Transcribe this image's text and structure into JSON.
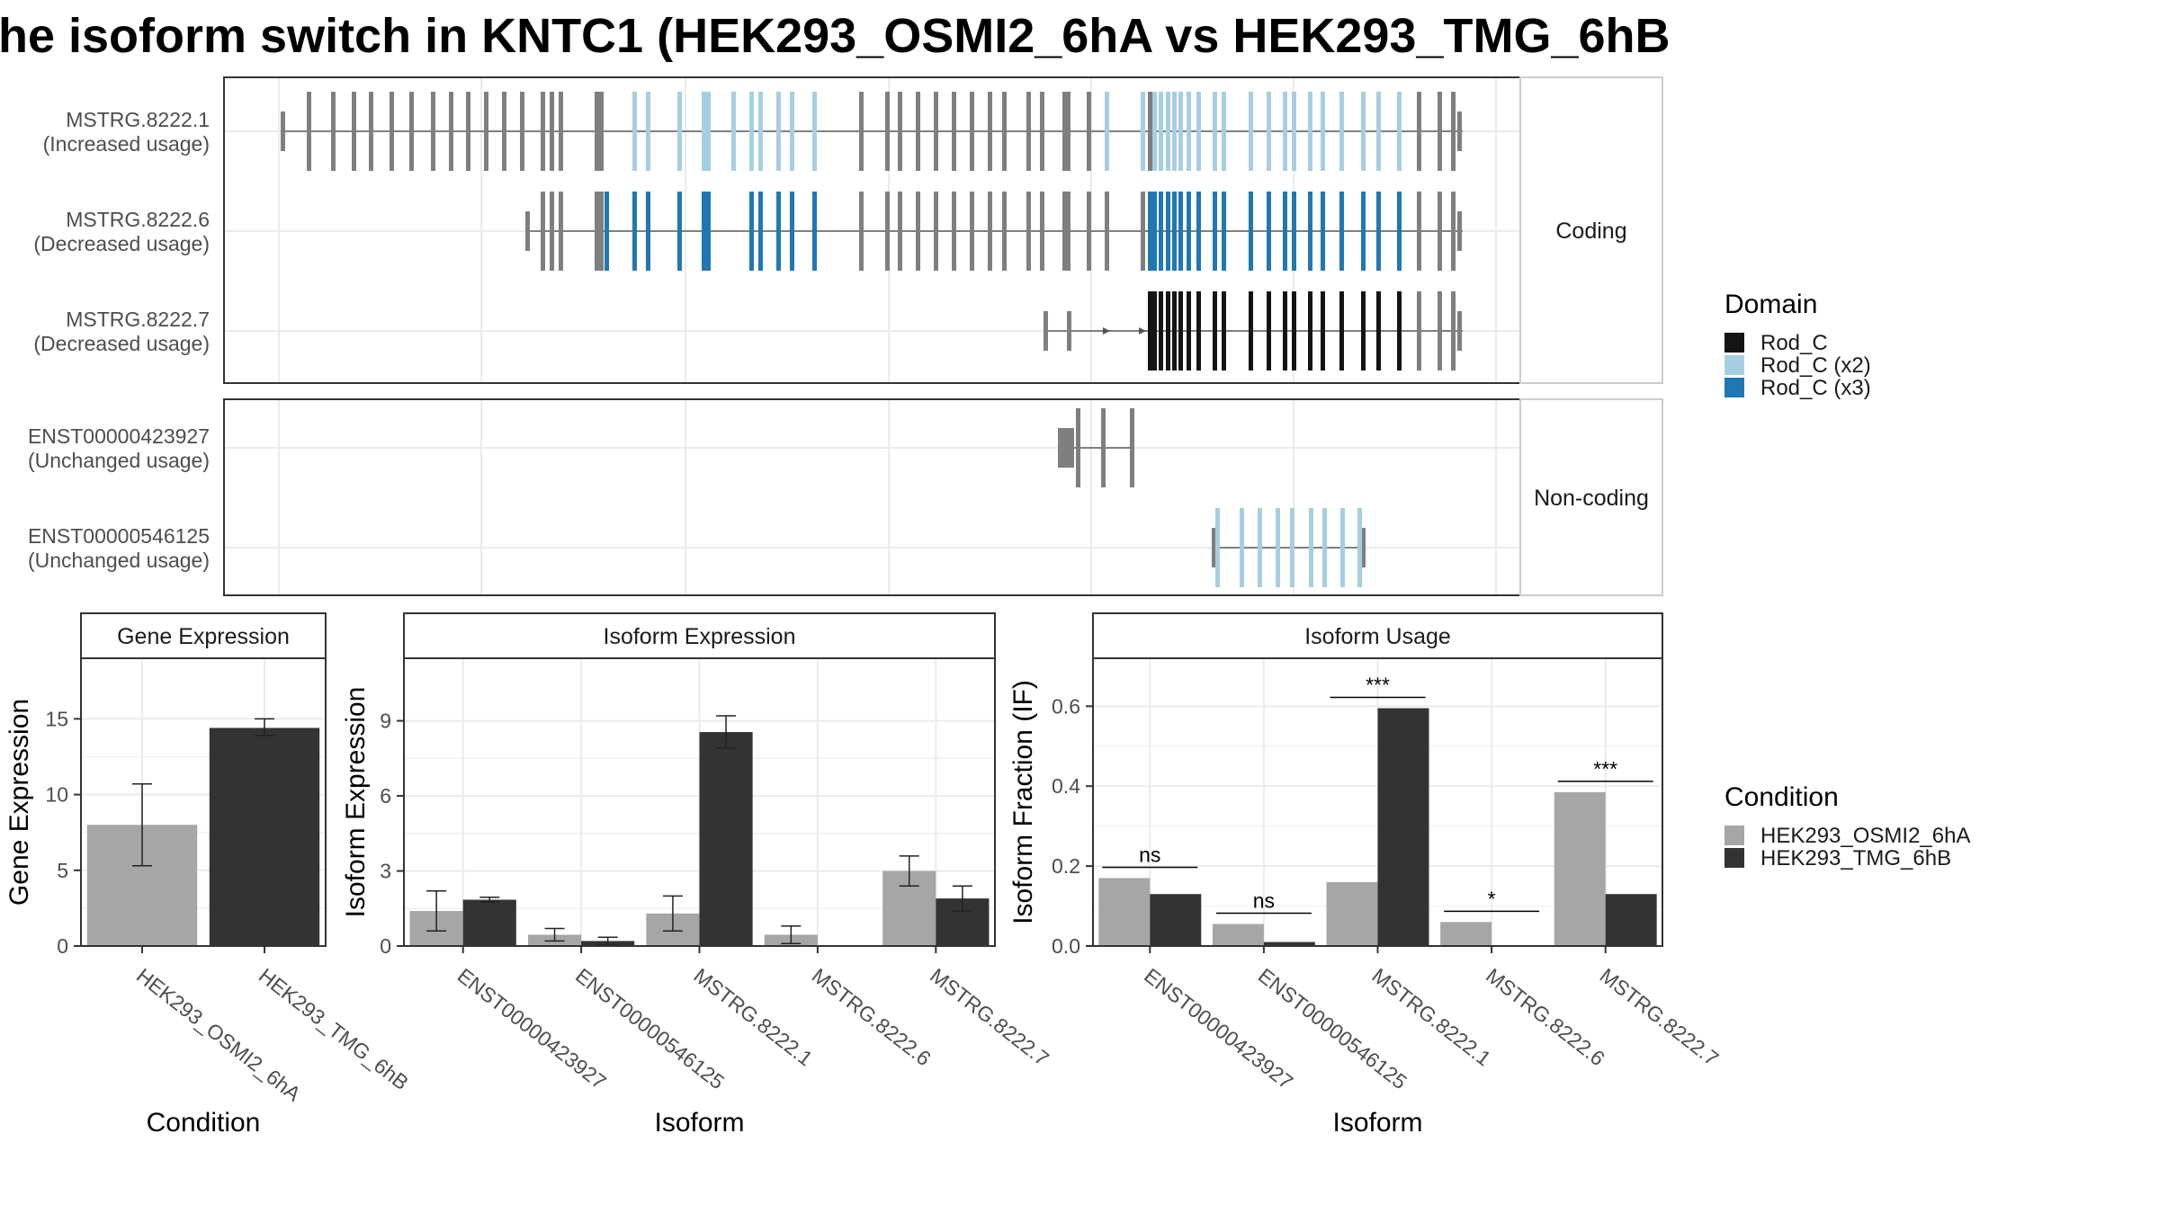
{
  "title": "he isoform switch in KNTC1 (HEK293_OSMI2_6hA vs HEK293_TMG_6hB",
  "colors": {
    "exon": "#7f7f7f",
    "intron": "#7f7f7f",
    "rod_c": "#141414",
    "rod_c_x2": "#a6cee3",
    "rod_c_x3": "#1f78b4",
    "cond_a": "#a6a6a6",
    "cond_b": "#333333",
    "grid": "#ebebeb",
    "frame": "#333333"
  },
  "transcripts": {
    "coding_label": "Coding",
    "noncoding_label": "Non-coding",
    "rows": [
      {
        "name": "MSTRG.8222.1",
        "usage": "(Increased usage)",
        "group": "coding"
      },
      {
        "name": "MSTRG.8222.6",
        "usage": "(Decreased usage)",
        "group": "coding"
      },
      {
        "name": "MSTRG.8222.7",
        "usage": "(Decreased usage)",
        "group": "coding"
      },
      {
        "name": "ENST00000423927",
        "usage": "(Unchanged usage)",
        "group": "noncoding"
      },
      {
        "name": "ENST00000546125",
        "usage": "(Unchanged usage)",
        "group": "noncoding"
      }
    ]
  },
  "legend_domain": {
    "title": "Domain",
    "items": [
      {
        "label": "Rod_C",
        "color": "#141414"
      },
      {
        "label": "Rod_C (x2)",
        "color": "#a6cee3"
      },
      {
        "label": "Rod_C (x3)",
        "color": "#1f78b4"
      }
    ]
  },
  "legend_condition": {
    "title": "Condition",
    "items": [
      {
        "label": "HEK293_OSMI2_6hA",
        "color": "#a6a6a6"
      },
      {
        "label": "HEK293_TMG_6hB",
        "color": "#333333"
      }
    ]
  },
  "chart_data": [
    {
      "type": "bar",
      "title": "Gene Expression",
      "xlabel": "Condition",
      "ylabel": "Gene Expression",
      "ylim": [
        0,
        19
      ],
      "yticks": [
        0,
        5,
        10,
        15
      ],
      "categories": [
        "HEK293_OSMI2_6hA",
        "HEK293_TMG_6hB"
      ],
      "values": [
        8.0,
        14.4
      ],
      "error": [
        [
          5.3,
          10.7
        ],
        [
          13.9,
          15.0
        ]
      ],
      "colors": [
        "#a6a6a6",
        "#333333"
      ]
    },
    {
      "type": "bar",
      "title": "Isoform Expression",
      "xlabel": "Isoform",
      "ylabel": "Isoform Expression",
      "ylim": [
        0,
        11.5
      ],
      "yticks": [
        0,
        3,
        6,
        9
      ],
      "categories": [
        "ENST00000423927",
        "ENST00000546125",
        "MSTRG.8222.1",
        "MSTRG.8222.6",
        "MSTRG.8222.7"
      ],
      "series": [
        {
          "name": "HEK293_OSMI2_6hA",
          "values": [
            1.4,
            0.45,
            1.3,
            0.45,
            3.0
          ],
          "error": [
            [
              0.6,
              2.2
            ],
            [
              0.2,
              0.7
            ],
            [
              0.6,
              2.0
            ],
            [
              0.1,
              0.8
            ],
            [
              2.4,
              3.6
            ]
          ]
        },
        {
          "name": "HEK293_TMG_6hB",
          "values": [
            1.85,
            0.2,
            8.55,
            0.0,
            1.9
          ],
          "error": [
            [
              1.75,
              1.95
            ],
            [
              0.05,
              0.35
            ],
            [
              7.9,
              9.2
            ],
            [
              0.0,
              0.0
            ],
            [
              1.4,
              2.4
            ]
          ]
        }
      ]
    },
    {
      "type": "bar",
      "title": "Isoform Usage",
      "xlabel": "Isoform",
      "ylabel": "Isoform Fraction (IF)",
      "ylim": [
        0,
        0.72
      ],
      "yticks": [
        0.0,
        0.2,
        0.4,
        0.6
      ],
      "categories": [
        "ENST00000423927",
        "ENST00000546125",
        "MSTRG.8222.1",
        "MSTRG.8222.6",
        "MSTRG.8222.7"
      ],
      "series": [
        {
          "name": "HEK293_OSMI2_6hA",
          "values": [
            0.17,
            0.055,
            0.16,
            0.06,
            0.385
          ]
        },
        {
          "name": "HEK293_TMG_6hB",
          "values": [
            0.13,
            0.01,
            0.595,
            0.0,
            0.13
          ]
        }
      ],
      "significance": [
        "ns",
        "ns",
        "***",
        "*",
        "***"
      ]
    }
  ]
}
